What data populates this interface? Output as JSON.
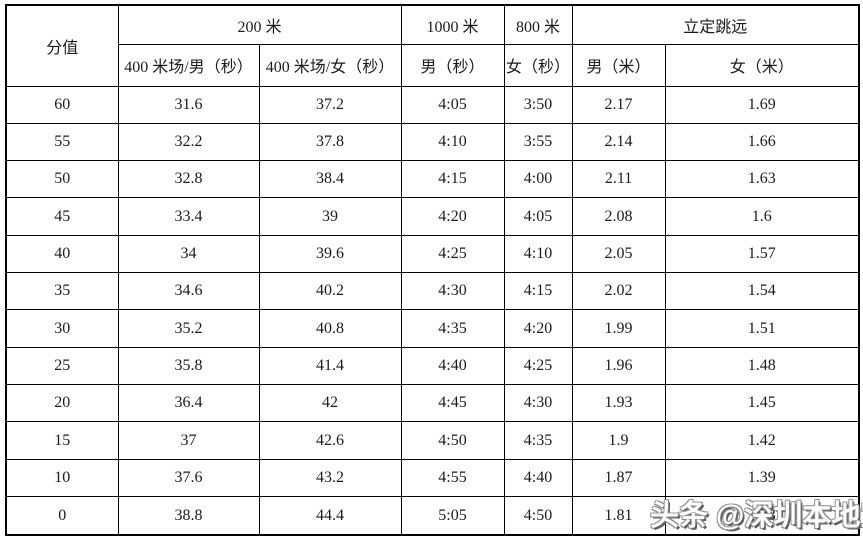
{
  "table": {
    "corner_header": "分值",
    "groups": [
      {
        "label": "200 米",
        "subs": [
          "400 米场/男（秒）",
          "400 米场/女（秒）"
        ]
      },
      {
        "label": "1000 米",
        "subs": [
          "男（秒）"
        ]
      },
      {
        "label": "800 米",
        "subs": [
          "女（秒）"
        ]
      },
      {
        "label": "立定跳远",
        "subs": [
          "男（米）",
          "女（米）"
        ]
      }
    ],
    "column_keys": [
      "score",
      "200m-400track-male",
      "200m-400track-female",
      "1000m-male",
      "800m-female",
      "longjump-male",
      "longjump-female"
    ],
    "rows": [
      [
        "60",
        "31.6",
        "37.2",
        "4:05",
        "3:50",
        "2.17",
        "1.69"
      ],
      [
        "55",
        "32.2",
        "37.8",
        "4:10",
        "3:55",
        "2.14",
        "1.66"
      ],
      [
        "50",
        "32.8",
        "38.4",
        "4:15",
        "4:00",
        "2.11",
        "1.63"
      ],
      [
        "45",
        "33.4",
        "39",
        "4:20",
        "4:05",
        "2.08",
        "1.6"
      ],
      [
        "40",
        "34",
        "39.6",
        "4:25",
        "4:10",
        "2.05",
        "1.57"
      ],
      [
        "35",
        "34.6",
        "40.2",
        "4:30",
        "4:15",
        "2.02",
        "1.54"
      ],
      [
        "30",
        "35.2",
        "40.8",
        "4:35",
        "4:20",
        "1.99",
        "1.51"
      ],
      [
        "25",
        "35.8",
        "41.4",
        "4:40",
        "4:25",
        "1.96",
        "1.48"
      ],
      [
        "20",
        "36.4",
        "42",
        "4:45",
        "4:30",
        "1.93",
        "1.45"
      ],
      [
        "15",
        "37",
        "42.6",
        "4:50",
        "4:35",
        "1.9",
        "1.42"
      ],
      [
        "10",
        "37.6",
        "43.2",
        "4:55",
        "4:40",
        "1.87",
        "1.39"
      ],
      [
        "0",
        "38.8",
        "44.4",
        "5:05",
        "4:50",
        "1.81",
        "1.33"
      ]
    ]
  },
  "watermark": {
    "text": "头条 @深圳本地宝"
  }
}
